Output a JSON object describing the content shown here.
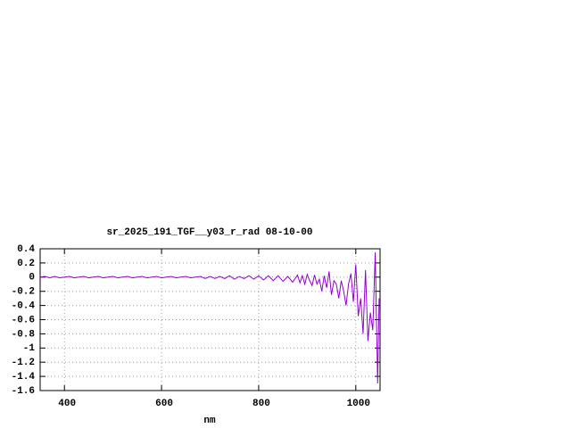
{
  "chart_data": {
    "type": "line",
    "title": "sr_2025_191_TGF__y03_r_rad 08-10-00",
    "x_label": "nm",
    "x": [
      350,
      360,
      370,
      380,
      390,
      400,
      410,
      420,
      430,
      440,
      450,
      460,
      470,
      480,
      490,
      500,
      510,
      520,
      530,
      540,
      550,
      560,
      570,
      580,
      590,
      600,
      610,
      620,
      630,
      640,
      650,
      660,
      670,
      680,
      690,
      700,
      710,
      720,
      730,
      740,
      750,
      760,
      770,
      780,
      790,
      800,
      810,
      820,
      830,
      840,
      850,
      860,
      870,
      880,
      885,
      890,
      895,
      900,
      905,
      910,
      915,
      920,
      925,
      930,
      935,
      940,
      945,
      950,
      955,
      960,
      965,
      970,
      975,
      980,
      985,
      990,
      995,
      1000,
      1005,
      1010,
      1015,
      1020,
      1025,
      1030,
      1035,
      1040,
      1045,
      1048
    ],
    "series": [
      {
        "color": "#9400d3",
        "values": [
          0,
          0.01,
          -0.01,
          0.01,
          -0.01,
          0,
          0.01,
          -0.01,
          0,
          0.01,
          -0.01,
          0,
          0.01,
          -0.01,
          0,
          0.01,
          -0.01,
          0,
          0.01,
          -0.01,
          0,
          0.01,
          -0.01,
          0,
          0.01,
          -0.01,
          0,
          0.01,
          -0.01,
          0,
          0.01,
          -0.01,
          0,
          0.01,
          -0.02,
          0.01,
          -0.02,
          0.01,
          -0.02,
          0.02,
          -0.03,
          0.01,
          -0.02,
          0.02,
          -0.03,
          0.02,
          -0.04,
          0.02,
          -0.05,
          0.02,
          -0.06,
          0.01,
          -0.07,
          0.03,
          -0.08,
          0.02,
          -0.1,
          0.04,
          -0.05,
          -0.12,
          0.03,
          -0.1,
          -0.03,
          -0.2,
          0.02,
          -0.15,
          0.08,
          -0.25,
          -0.05,
          -0.1,
          -0.3,
          -0.05,
          -0.2,
          -0.4,
          -0.1,
          0.05,
          -0.35,
          0.18,
          -0.55,
          -0.3,
          -0.8,
          0.1,
          -0.9,
          -0.5,
          -0.75,
          0.35,
          -1.5,
          -0.3
        ]
      }
    ],
    "xlim": [
      350,
      1050
    ],
    "ylim": [
      -1.6,
      0.4
    ],
    "xticks": [
      400,
      600,
      800,
      1000
    ],
    "yticks": [
      0.4,
      0.2,
      0,
      -0.2,
      -0.4,
      -0.6,
      -0.8,
      -1,
      -1.2,
      -1.4,
      -1.6
    ],
    "grid": true
  }
}
